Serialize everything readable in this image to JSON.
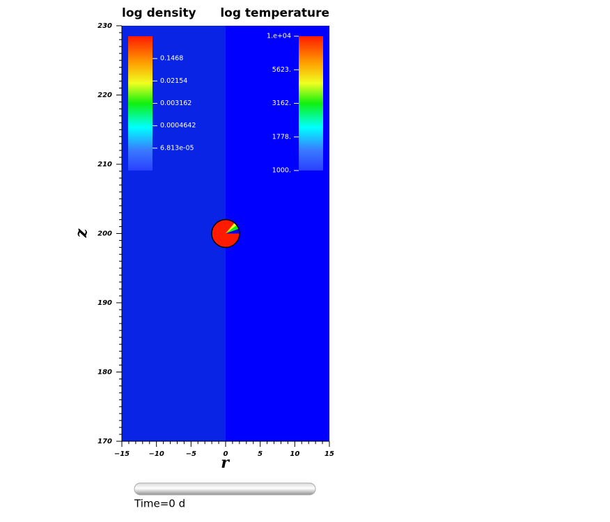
{
  "chart_data": {
    "type": "field",
    "xlabel": "r",
    "ylabel": "z",
    "xlim": [
      -15,
      15
    ],
    "ylim": [
      170,
      230
    ],
    "xticks": [
      {
        "value": -15,
        "label": "−15"
      },
      {
        "value": -10,
        "label": "−10"
      },
      {
        "value": -5,
        "label": "−5"
      },
      0,
      5,
      10,
      15
    ],
    "yticks": [
      170,
      180,
      190,
      200,
      210,
      220,
      230
    ],
    "panels": [
      {
        "title": "log density",
        "color": "#0a24e6",
        "log": true,
        "clim": [
          1e-05,
          1
        ],
        "cticks": [
          0.1468,
          0.02154,
          0.003162,
          0.0004642,
          {
            "value": 6.813e-05,
            "label": "6.813e-05"
          }
        ]
      },
      {
        "title": "log temperature",
        "color": "#0000ff",
        "log": true,
        "clim": [
          1000,
          10000
        ],
        "cticks": [
          {
            "value": 10000,
            "label": "1.e+04"
          },
          {
            "value": 5623,
            "label": "5623."
          },
          {
            "value": 3162,
            "label": "3162."
          },
          {
            "value": 1778,
            "label": "1778."
          },
          {
            "value": 1000,
            "label": "1000."
          }
        ]
      }
    ],
    "time_label": "Time=0 d"
  }
}
